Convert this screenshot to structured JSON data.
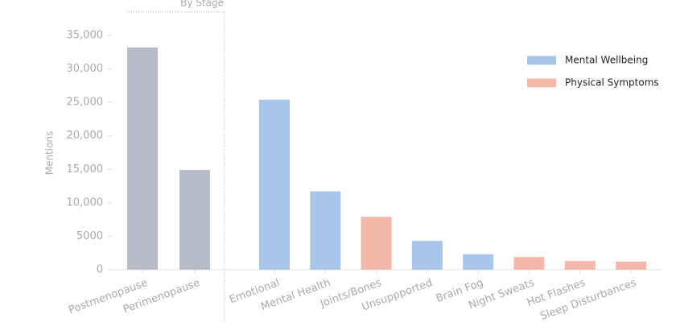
{
  "chart_data": {
    "type": "bar",
    "annotation": "By Stage",
    "ylabel": "Mentions",
    "categories": [
      "Postmenopause",
      "Perimenopause",
      "Emotional",
      "Mental Health",
      "Joints/Bones",
      "Unsuppported",
      "Brain Fog",
      "Night Sweats",
      "Hot Flashes",
      "Sleep Disturbances"
    ],
    "series": [
      {
        "color": "#b5bcc7",
        "values": [
          33200,
          14900,
          null,
          null,
          null,
          null,
          null,
          null,
          null,
          null
        ]
      },
      {
        "name": "Mental Wellbeing",
        "color": "#a8c6ea",
        "values": [
          null,
          null,
          25400,
          11700,
          null,
          4300,
          2300,
          null,
          null,
          null
        ]
      },
      {
        "name": "Physical Symptoms",
        "color": "#f4b8a8",
        "values": [
          null,
          null,
          null,
          null,
          7900,
          null,
          null,
          1900,
          1300,
          1200
        ]
      }
    ],
    "ylim": [
      0,
      35000
    ],
    "yticks": [
      0,
      5000,
      {
        "value": 10000,
        "label": "10,000"
      },
      {
        "value": 15000,
        "label": "15,000"
      },
      {
        "value": 20000,
        "label": "20,000"
      },
      {
        "value": 25000,
        "label": "25,000"
      },
      {
        "value": 30000,
        "label": "30,000"
      },
      {
        "value": 35000,
        "label": "35,000"
      }
    ],
    "grid": false,
    "legend": "top-right"
  }
}
